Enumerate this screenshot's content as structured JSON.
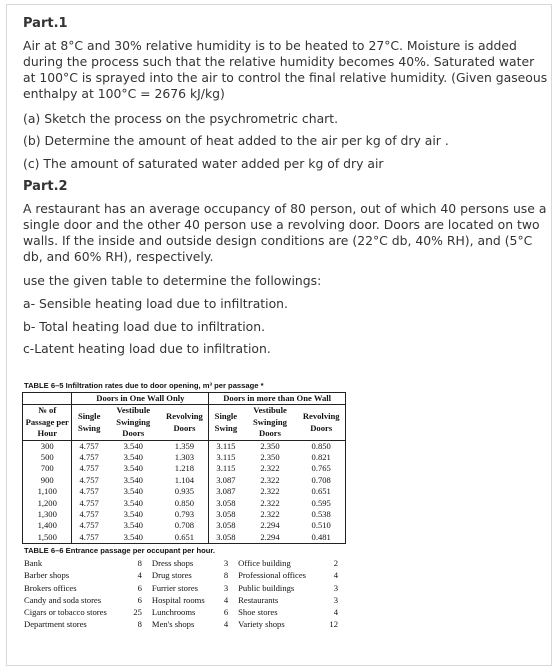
{
  "part1": {
    "title": "Part.1",
    "paragraph": "Air at 8°C and 30% relative humidity is to be heated to 27°C. Moisture is added during the process such that the relative humidity becomes 40%. Saturated water at 100°C is sprayed into the air to control the final relative humidity. (Given gaseous enthalpy at 100°C = 2676 kJ/kg)",
    "items": [
      "(a)  Sketch the process on the psychrometric chart.",
      "(b)  Determine the amount of heat added to the air per kg of dry air .",
      "(c)  The amount of saturated water added per kg of dry air"
    ]
  },
  "part2": {
    "title": "Part.2",
    "paragraph": "A restaurant has an average occupancy of 80 person, out of which 40 persons use a single door and the other 40 person use a revolving door. Doors are located on two walls. If the inside and outside design conditions are (22°C db, 40% RH), and (5°C db, and 60% RH), respectively.",
    "instruction": "use the given table to determine the followings:",
    "items": [
      "a- Sensible heating load due to infiltration.",
      "b- Total heating load due to infiltration.",
      "c-Latent heating load due to infiltration."
    ]
  },
  "table_6_5": {
    "caption": "TABLE 6–5 Infiltration rates due to door opening, m³ per passage *",
    "group_headers": [
      "Doors in One Wall Only",
      "Doors in more than One Wall"
    ],
    "headers": [
      "№ of Passage per Hour",
      "Single Swing",
      "Vestibule Swinging Doors",
      "Revolving Doors",
      "Single Swing",
      "Vestibule Swinging Doors",
      "Revolving Doors"
    ],
    "rows": [
      [
        "300",
        "4.757",
        "3.540",
        "1.359",
        "3.115",
        "2.350",
        "0.850"
      ],
      [
        "500",
        "4.757",
        "3.540",
        "1.303",
        "3.115",
        "2.350",
        "0.821"
      ],
      [
        "700",
        "4.757",
        "3.540",
        "1.218",
        "3.115",
        "2.322",
        "0.765"
      ],
      [
        "900",
        "4.757",
        "3.540",
        "1.104",
        "3.087",
        "2.322",
        "0.708"
      ],
      [
        "1,100",
        "4.757",
        "3.540",
        "0.935",
        "3.087",
        "2.322",
        "0.651"
      ],
      [
        "1,200",
        "4.757",
        "3.540",
        "0.850",
        "3.058",
        "2.322",
        "0.595"
      ],
      [
        "1,300",
        "4.757",
        "3.540",
        "0.793",
        "3.058",
        "2.322",
        "0.538"
      ],
      [
        "1,400",
        "4.757",
        "3.540",
        "0.708",
        "3.058",
        "2.294",
        "0.510"
      ],
      [
        "1,500",
        "4.757",
        "3.540",
        "0.651",
        "3.058",
        "2.294",
        "0.481"
      ]
    ]
  },
  "table_6_6": {
    "caption": "TABLE 6–6 Entrance passage per occupant per hour.",
    "rows": [
      [
        "Bank",
        "8",
        "Dress shops",
        "3",
        "Office building",
        "2"
      ],
      [
        "Barber shops",
        "4",
        "Drug stores",
        "8",
        "Professional offices",
        "4"
      ],
      [
        "Brokers offices",
        "6",
        "Furrier stores",
        "3",
        "Public buildings",
        "3"
      ],
      [
        "Candy and soda stores",
        "6",
        "Hospital rooms",
        "4",
        "Restaurants",
        "3"
      ],
      [
        "Cigars or tobacco stores",
        "25",
        "Lunchrooms",
        "6",
        "Shoe stores",
        "4"
      ],
      [
        "Department stores",
        "8",
        "Men's shops",
        "4",
        "Variety shops",
        "12"
      ]
    ]
  }
}
